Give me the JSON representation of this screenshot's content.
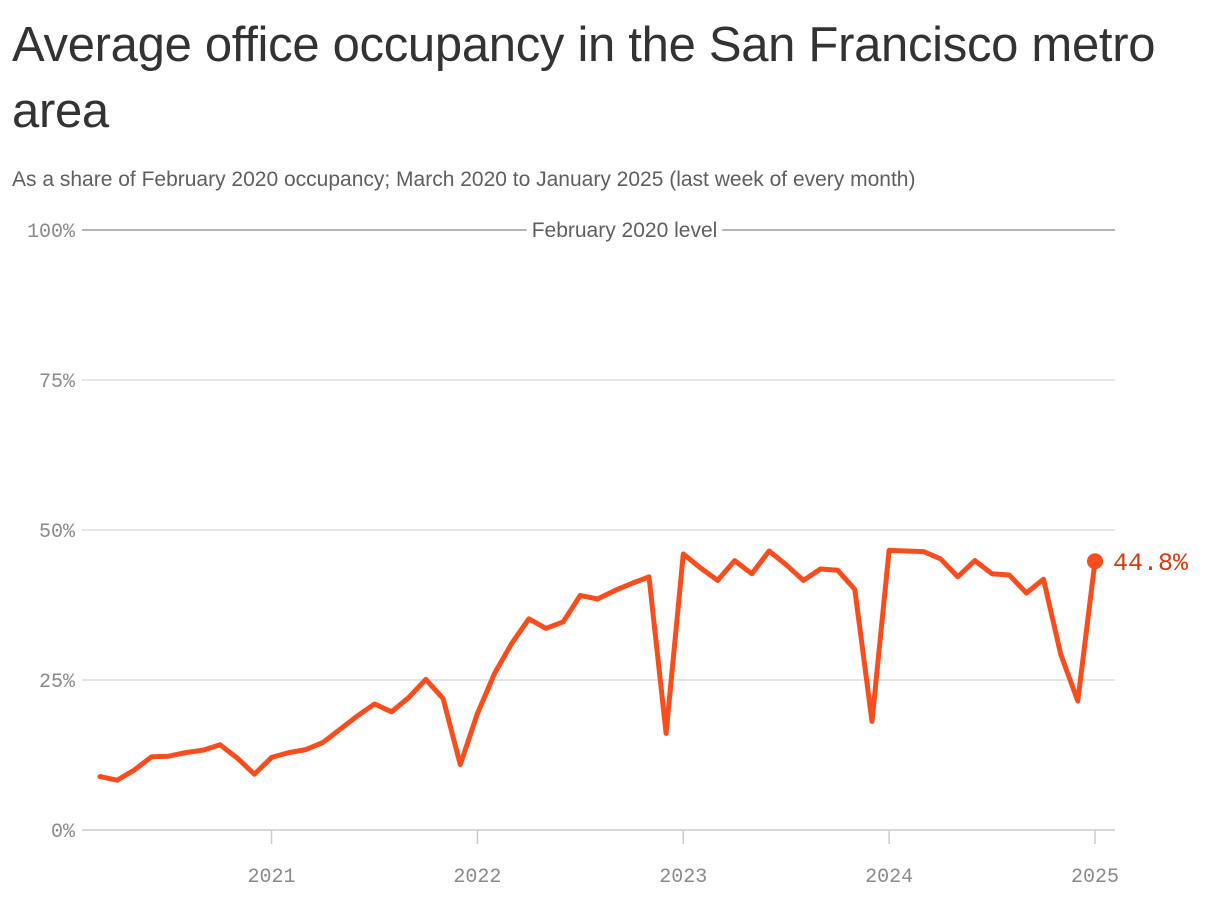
{
  "title": "Average office occupancy in the San Francisco metro area",
  "subtitle": "As a share of February 2020 occupancy; March 2020 to January 2025 (last week of every month)",
  "colors": {
    "line": "#fa4d1e",
    "end_label": "#d9390f",
    "grid": "#dddddd",
    "reference": "#b5b5b5",
    "axis": "#cccccc"
  },
  "chart_data": {
    "type": "line",
    "title": "Average office occupancy in the San Francisco metro area",
    "subtitle": "As a share of February 2020 occupancy; March 2020 to January 2025 (last week of every month)",
    "xlabel": "",
    "ylabel": "",
    "ylim": [
      0,
      100
    ],
    "y_ticks": [
      {
        "value": 100,
        "label": "100%"
      },
      {
        "value": 75,
        "label": "75%"
      },
      {
        "value": 50,
        "label": "50%"
      },
      {
        "value": 25,
        "label": "25%"
      },
      {
        "value": 0,
        "label": "0%"
      }
    ],
    "x_range": [
      "2020-03",
      "2025-01"
    ],
    "x_ticks": [
      {
        "value": "2021-01",
        "label": "2021"
      },
      {
        "value": "2022-01",
        "label": "2022"
      },
      {
        "value": "2023-01",
        "label": "2023"
      },
      {
        "value": "2024-01",
        "label": "2024"
      },
      {
        "value": "2025-01",
        "label": "2025"
      }
    ],
    "grid": true,
    "reference_line": {
      "value": 100,
      "label": "February 2020 level"
    },
    "end_label": "44.8%",
    "series": [
      {
        "x": [
          "2020-03",
          "2020-04",
          "2020-05",
          "2020-06",
          "2020-07",
          "2020-08",
          "2020-09",
          "2020-10",
          "2020-11",
          "2020-12",
          "2021-01",
          "2021-02",
          "2021-03",
          "2021-04",
          "2021-05",
          "2021-06",
          "2021-07",
          "2021-08",
          "2021-09",
          "2021-10",
          "2021-11",
          "2021-12",
          "2022-01",
          "2022-02",
          "2022-03",
          "2022-04",
          "2022-05",
          "2022-06",
          "2022-07",
          "2022-08",
          "2022-09",
          "2022-10",
          "2022-11",
          "2022-12",
          "2023-01",
          "2023-02",
          "2023-03",
          "2023-04",
          "2023-05",
          "2023-06",
          "2023-07",
          "2023-08",
          "2023-09",
          "2023-10",
          "2023-11",
          "2023-12",
          "2024-01",
          "2024-02",
          "2024-03",
          "2024-04",
          "2024-05",
          "2024-06",
          "2024-07",
          "2024-08",
          "2024-09",
          "2024-10",
          "2024-11",
          "2024-12",
          "2025-01"
        ],
        "values": [
          8.9,
          8.3,
          10.0,
          12.2,
          12.3,
          12.9,
          13.3,
          14.2,
          12.0,
          9.3,
          12.1,
          12.9,
          13.4,
          14.6,
          16.8,
          19.0,
          21.0,
          19.7,
          22.1,
          25.1,
          21.9,
          10.9,
          19.4,
          26.1,
          31.1,
          35.2,
          33.6,
          34.7,
          39.1,
          38.5,
          39.9,
          41.1,
          42.2,
          16.1,
          46.0,
          43.7,
          41.6,
          44.9,
          42.7,
          46.5,
          44.2,
          41.6,
          43.5,
          43.3,
          40.1,
          18.1,
          46.6,
          46.5,
          46.4,
          45.2,
          42.2,
          44.9,
          42.7,
          42.5,
          39.5,
          41.8,
          29.3,
          21.5,
          44.8
        ]
      }
    ]
  }
}
